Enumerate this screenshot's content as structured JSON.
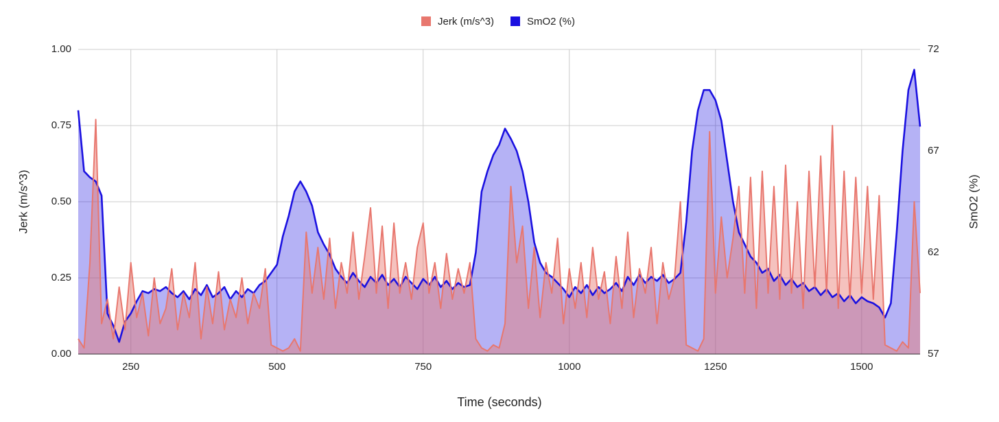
{
  "chart_data": {
    "type": "area",
    "x_label": "Time (seconds)",
    "y_label": "Jerk (m/s^3)",
    "y2_label": "SmO2 (%)",
    "xlim": [
      160,
      1600
    ],
    "xticks": [
      250,
      500,
      750,
      1000,
      1250,
      1500
    ],
    "ylim": [
      0,
      1
    ],
    "yticks": [
      {
        "value": 0,
        "label": "0.00"
      },
      {
        "value": 0.25,
        "label": "0.25"
      },
      {
        "value": 0.5,
        "label": "0.50"
      },
      {
        "value": 0.75,
        "label": "0.75"
      },
      {
        "value": 1,
        "label": "1.00"
      }
    ],
    "y2lim": [
      57,
      72
    ],
    "y2ticks": [
      57,
      62,
      67,
      72
    ],
    "grid": true,
    "legend": "top",
    "x": [
      160,
      170,
      180,
      190,
      200,
      210,
      220,
      230,
      240,
      250,
      260,
      270,
      280,
      290,
      300,
      310,
      320,
      330,
      340,
      350,
      360,
      370,
      380,
      390,
      400,
      410,
      420,
      430,
      440,
      450,
      460,
      470,
      480,
      490,
      500,
      510,
      520,
      530,
      540,
      550,
      560,
      570,
      580,
      590,
      600,
      610,
      620,
      630,
      640,
      650,
      660,
      670,
      680,
      690,
      700,
      710,
      720,
      730,
      740,
      750,
      760,
      770,
      780,
      790,
      800,
      810,
      820,
      830,
      840,
      850,
      860,
      870,
      880,
      890,
      900,
      910,
      920,
      930,
      940,
      950,
      960,
      970,
      980,
      990,
      1000,
      1010,
      1020,
      1030,
      1040,
      1050,
      1060,
      1070,
      1080,
      1090,
      1100,
      1110,
      1120,
      1130,
      1140,
      1150,
      1160,
      1170,
      1180,
      1190,
      1200,
      1210,
      1220,
      1230,
      1240,
      1250,
      1260,
      1270,
      1280,
      1290,
      1300,
      1310,
      1320,
      1330,
      1340,
      1350,
      1360,
      1370,
      1380,
      1390,
      1400,
      1410,
      1420,
      1430,
      1440,
      1450,
      1460,
      1470,
      1480,
      1490,
      1500,
      1510,
      1520,
      1530,
      1540,
      1550,
      1560,
      1570,
      1580,
      1590,
      1600
    ],
    "series": [
      {
        "name": "Jerk (m/s^3)",
        "color": "#e8776e",
        "values": [
          0.05,
          0.02,
          0.3,
          0.77,
          0.1,
          0.18,
          0.05,
          0.22,
          0.08,
          0.3,
          0.12,
          0.2,
          0.06,
          0.25,
          0.1,
          0.15,
          0.28,
          0.08,
          0.2,
          0.12,
          0.3,
          0.05,
          0.22,
          0.1,
          0.27,
          0.08,
          0.18,
          0.12,
          0.25,
          0.1,
          0.2,
          0.15,
          0.28,
          0.03,
          0.02,
          0.01,
          0.02,
          0.05,
          0.01,
          0.4,
          0.2,
          0.35,
          0.18,
          0.38,
          0.15,
          0.3,
          0.2,
          0.4,
          0.18,
          0.32,
          0.48,
          0.2,
          0.42,
          0.15,
          0.43,
          0.2,
          0.3,
          0.18,
          0.35,
          0.43,
          0.2,
          0.3,
          0.15,
          0.33,
          0.18,
          0.28,
          0.2,
          0.3,
          0.05,
          0.02,
          0.01,
          0.03,
          0.02,
          0.1,
          0.55,
          0.3,
          0.42,
          0.15,
          0.35,
          0.12,
          0.3,
          0.2,
          0.38,
          0.1,
          0.28,
          0.15,
          0.3,
          0.12,
          0.35,
          0.18,
          0.27,
          0.1,
          0.32,
          0.15,
          0.4,
          0.12,
          0.28,
          0.2,
          0.35,
          0.1,
          0.3,
          0.18,
          0.25,
          0.5,
          0.03,
          0.02,
          0.01,
          0.05,
          0.73,
          0.2,
          0.45,
          0.25,
          0.38,
          0.55,
          0.2,
          0.58,
          0.15,
          0.6,
          0.2,
          0.55,
          0.18,
          0.62,
          0.2,
          0.5,
          0.15,
          0.6,
          0.22,
          0.65,
          0.2,
          0.75,
          0.15,
          0.6,
          0.18,
          0.58,
          0.2,
          0.55,
          0.18,
          0.52,
          0.03,
          0.02,
          0.01,
          0.04,
          0.02,
          0.5,
          0.2
        ]
      },
      {
        "name": "SmO2 (%)",
        "color": "#1a10e0",
        "axis": "y2",
        "values": [
          69.0,
          66.0,
          65.7,
          65.5,
          64.8,
          59.0,
          58.4,
          57.6,
          58.6,
          59.0,
          59.6,
          60.1,
          60.0,
          60.2,
          60.1,
          60.3,
          60.0,
          59.8,
          60.1,
          59.7,
          60.2,
          59.9,
          60.4,
          59.8,
          60.0,
          60.3,
          59.7,
          60.1,
          59.8,
          60.2,
          60.0,
          60.4,
          60.6,
          61.0,
          61.4,
          62.8,
          63.8,
          65.0,
          65.5,
          65.0,
          64.3,
          63.0,
          62.4,
          61.9,
          61.2,
          60.8,
          60.5,
          61.0,
          60.6,
          60.3,
          60.8,
          60.5,
          60.9,
          60.4,
          60.7,
          60.3,
          60.8,
          60.5,
          60.2,
          60.7,
          60.4,
          60.8,
          60.3,
          60.6,
          60.2,
          60.5,
          60.3,
          60.4,
          62.0,
          65.0,
          66.0,
          66.8,
          67.3,
          68.1,
          67.6,
          67.0,
          66.0,
          64.5,
          62.5,
          61.5,
          61.0,
          60.8,
          60.5,
          60.2,
          59.8,
          60.3,
          60.0,
          60.4,
          59.9,
          60.3,
          60.0,
          60.2,
          60.5,
          60.1,
          60.8,
          60.4,
          60.9,
          60.5,
          60.8,
          60.6,
          60.9,
          60.5,
          60.7,
          61.0,
          63.5,
          67.0,
          69.0,
          70.0,
          70.0,
          69.5,
          68.5,
          66.5,
          64.5,
          63.0,
          62.4,
          61.8,
          61.5,
          61.0,
          61.2,
          60.6,
          60.9,
          60.4,
          60.7,
          60.3,
          60.5,
          60.1,
          60.3,
          59.9,
          60.2,
          59.8,
          60.0,
          59.6,
          59.9,
          59.5,
          59.8,
          59.6,
          59.5,
          59.3,
          58.8,
          59.5,
          63.0,
          67.0,
          70.0,
          71.0,
          68.2
        ]
      }
    ]
  }
}
